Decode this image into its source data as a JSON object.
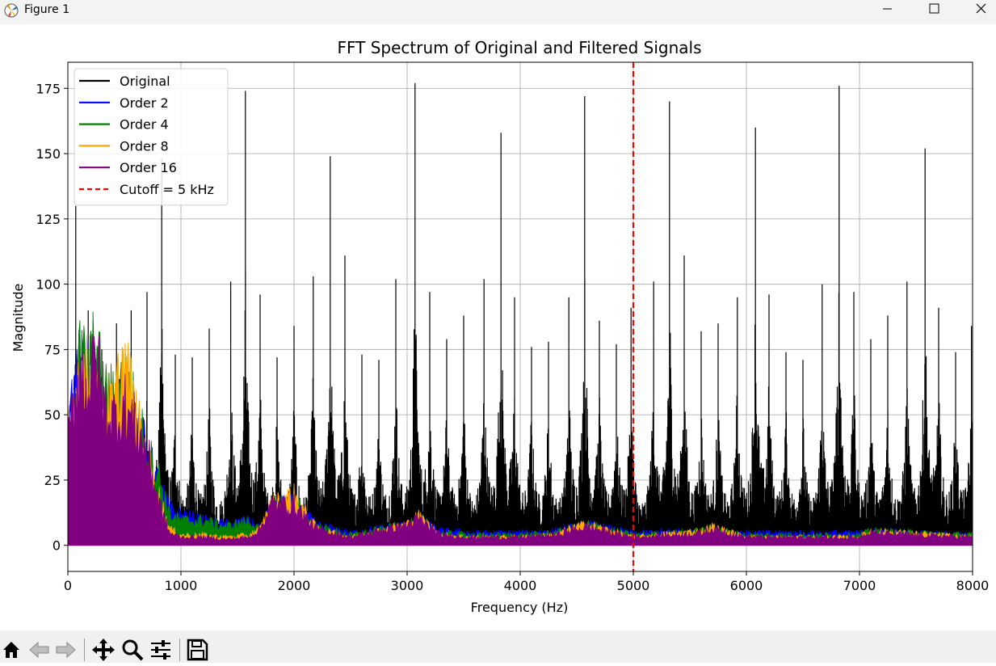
{
  "window": {
    "title": "Figure 1",
    "buttons": [
      "minimize",
      "maximize",
      "close"
    ]
  },
  "toolbar": {
    "icons": [
      "home-icon",
      "back-arrow-icon",
      "forward-arrow-icon",
      "pan-icon",
      "zoom-icon",
      "configure-subplots-icon",
      "save-icon"
    ]
  },
  "chart_data": {
    "type": "line",
    "title": "FFT Spectrum of Original and Filtered Signals",
    "xlabel": "Frequency (Hz)",
    "ylabel": "Magnitude",
    "xlim": [
      0,
      8000
    ],
    "ylim": [
      -10,
      185
    ],
    "xticks": [
      0,
      1000,
      2000,
      3000,
      4000,
      5000,
      6000,
      7000,
      8000
    ],
    "yticks": [
      0,
      25,
      50,
      75,
      100,
      125,
      150,
      175
    ],
    "grid": true,
    "legend_position": "top-left",
    "legend": [
      {
        "label": "Original",
        "color": "#000000",
        "style": "solid"
      },
      {
        "label": "Order 2",
        "color": "#0000ff",
        "style": "solid"
      },
      {
        "label": "Order 4",
        "color": "#008000",
        "style": "solid"
      },
      {
        "label": "Order 8",
        "color": "#ffa500",
        "style": "solid"
      },
      {
        "label": "Order 16",
        "color": "#800080",
        "style": "solid"
      },
      {
        "label": "Cutoff = 5 kHz",
        "color": "#ff0000",
        "style": "dashed"
      }
    ],
    "cutoff_line": {
      "x": 5000,
      "color": "#ff0000"
    },
    "series": [
      {
        "name": "Original",
        "color": "#000000",
        "peaks": [
          {
            "x": 70,
            "y": 130
          },
          {
            "x": 180,
            "y": 90
          },
          {
            "x": 300,
            "y": 75
          },
          {
            "x": 430,
            "y": 85
          },
          {
            "x": 560,
            "y": 90
          },
          {
            "x": 700,
            "y": 97
          },
          {
            "x": 830,
            "y": 148
          },
          {
            "x": 950,
            "y": 73
          },
          {
            "x": 1100,
            "y": 72
          },
          {
            "x": 1250,
            "y": 83
          },
          {
            "x": 1440,
            "y": 101
          },
          {
            "x": 1570,
            "y": 174
          },
          {
            "x": 1700,
            "y": 96
          },
          {
            "x": 1850,
            "y": 72
          },
          {
            "x": 2000,
            "y": 84
          },
          {
            "x": 2170,
            "y": 103
          },
          {
            "x": 2320,
            "y": 149
          },
          {
            "x": 2450,
            "y": 111
          },
          {
            "x": 2600,
            "y": 73
          },
          {
            "x": 2750,
            "y": 71
          },
          {
            "x": 2900,
            "y": 102
          },
          {
            "x": 3070,
            "y": 177
          },
          {
            "x": 3200,
            "y": 97
          },
          {
            "x": 3350,
            "y": 79
          },
          {
            "x": 3500,
            "y": 88
          },
          {
            "x": 3680,
            "y": 102
          },
          {
            "x": 3830,
            "y": 158
          },
          {
            "x": 3950,
            "y": 95
          },
          {
            "x": 4100,
            "y": 76
          },
          {
            "x": 4250,
            "y": 78
          },
          {
            "x": 4430,
            "y": 95
          },
          {
            "x": 4570,
            "y": 172
          },
          {
            "x": 4700,
            "y": 86
          },
          {
            "x": 4850,
            "y": 77
          },
          {
            "x": 4980,
            "y": 91
          },
          {
            "x": 5180,
            "y": 101
          },
          {
            "x": 5320,
            "y": 170
          },
          {
            "x": 5450,
            "y": 111
          },
          {
            "x": 5600,
            "y": 82
          },
          {
            "x": 5750,
            "y": 85
          },
          {
            "x": 5920,
            "y": 95
          },
          {
            "x": 6080,
            "y": 160
          },
          {
            "x": 6200,
            "y": 96
          },
          {
            "x": 6350,
            "y": 74
          },
          {
            "x": 6500,
            "y": 71
          },
          {
            "x": 6670,
            "y": 100
          },
          {
            "x": 6820,
            "y": 176
          },
          {
            "x": 6950,
            "y": 97
          },
          {
            "x": 7100,
            "y": 79
          },
          {
            "x": 7250,
            "y": 88
          },
          {
            "x": 7420,
            "y": 101
          },
          {
            "x": 7580,
            "y": 152
          },
          {
            "x": 7700,
            "y": 91
          },
          {
            "x": 7850,
            "y": 74
          },
          {
            "x": 7990,
            "y": 84
          }
        ]
      },
      {
        "name": "Order 2",
        "color": "#0000ff",
        "envelope": [
          [
            0,
            55
          ],
          [
            100,
            85
          ],
          [
            200,
            80
          ],
          [
            300,
            70
          ],
          [
            400,
            65
          ],
          [
            500,
            75
          ],
          [
            600,
            60
          ],
          [
            700,
            45
          ],
          [
            800,
            30
          ],
          [
            900,
            18
          ],
          [
            1000,
            15
          ],
          [
            1200,
            12
          ],
          [
            1400,
            10
          ],
          [
            1600,
            12
          ],
          [
            1700,
            8
          ],
          [
            1800,
            18
          ],
          [
            2000,
            20
          ],
          [
            2200,
            10
          ],
          [
            2500,
            6
          ],
          [
            3000,
            10
          ],
          [
            3100,
            12
          ],
          [
            3300,
            7
          ],
          [
            3600,
            6
          ],
          [
            4000,
            6
          ],
          [
            4300,
            7
          ],
          [
            4500,
            9
          ],
          [
            4600,
            10
          ],
          [
            5000,
            6
          ],
          [
            5600,
            7
          ],
          [
            5700,
            8
          ],
          [
            6000,
            6
          ],
          [
            6500,
            6
          ],
          [
            7000,
            6
          ],
          [
            7100,
            7
          ],
          [
            8000,
            5
          ]
        ]
      },
      {
        "name": "Order 4",
        "color": "#008000",
        "envelope": [
          [
            0,
            55
          ],
          [
            100,
            90
          ],
          [
            200,
            85
          ],
          [
            250,
            100
          ],
          [
            300,
            75
          ],
          [
            400,
            70
          ],
          [
            500,
            80
          ],
          [
            600,
            65
          ],
          [
            700,
            45
          ],
          [
            800,
            35
          ],
          [
            900,
            15
          ],
          [
            1000,
            12
          ],
          [
            1200,
            12
          ],
          [
            1400,
            9
          ],
          [
            1600,
            12
          ],
          [
            1700,
            7
          ],
          [
            1800,
            19
          ],
          [
            2000,
            21
          ],
          [
            2200,
            9
          ],
          [
            2500,
            5
          ],
          [
            3000,
            10
          ],
          [
            3100,
            13
          ],
          [
            3300,
            6
          ],
          [
            3600,
            5
          ],
          [
            4000,
            5
          ],
          [
            4300,
            6
          ],
          [
            4500,
            9
          ],
          [
            4600,
            10
          ],
          [
            5000,
            5
          ],
          [
            5600,
            7
          ],
          [
            5700,
            8
          ],
          [
            6000,
            5
          ],
          [
            6500,
            5
          ],
          [
            7000,
            5
          ],
          [
            7100,
            7
          ],
          [
            8000,
            5
          ]
        ]
      },
      {
        "name": "Order 8",
        "color": "#ffa500",
        "envelope": [
          [
            0,
            55
          ],
          [
            100,
            85
          ],
          [
            200,
            80
          ],
          [
            300,
            70
          ],
          [
            400,
            65
          ],
          [
            500,
            92
          ],
          [
            600,
            62
          ],
          [
            700,
            42
          ],
          [
            800,
            25
          ],
          [
            900,
            8
          ],
          [
            1000,
            5
          ],
          [
            1200,
            5
          ],
          [
            1400,
            4
          ],
          [
            1600,
            5
          ],
          [
            1700,
            8
          ],
          [
            1800,
            20
          ],
          [
            2000,
            24
          ],
          [
            2200,
            8
          ],
          [
            2500,
            4
          ],
          [
            3000,
            10
          ],
          [
            3100,
            14
          ],
          [
            3300,
            5
          ],
          [
            3600,
            4
          ],
          [
            4000,
            4
          ],
          [
            4300,
            5
          ],
          [
            4500,
            9
          ],
          [
            4600,
            10
          ],
          [
            5000,
            4
          ],
          [
            5600,
            7
          ],
          [
            5700,
            9
          ],
          [
            6000,
            4
          ],
          [
            6500,
            4
          ],
          [
            7000,
            4
          ],
          [
            7100,
            7
          ],
          [
            8000,
            4
          ]
        ]
      },
      {
        "name": "Order 16",
        "color": "#800080",
        "envelope": [
          [
            0,
            50
          ],
          [
            100,
            85
          ],
          [
            200,
            78
          ],
          [
            250,
            95
          ],
          [
            300,
            70
          ],
          [
            400,
            62
          ],
          [
            500,
            68
          ],
          [
            600,
            58
          ],
          [
            700,
            45
          ],
          [
            800,
            22
          ],
          [
            900,
            6
          ],
          [
            1000,
            4
          ],
          [
            1200,
            4
          ],
          [
            1400,
            3
          ],
          [
            1600,
            4
          ],
          [
            1700,
            8
          ],
          [
            1800,
            20
          ],
          [
            2000,
            20
          ],
          [
            2200,
            8
          ],
          [
            2500,
            4
          ],
          [
            3000,
            10
          ],
          [
            3100,
            13
          ],
          [
            3300,
            5
          ],
          [
            3600,
            4
          ],
          [
            4000,
            4
          ],
          [
            4300,
            5
          ],
          [
            4500,
            8
          ],
          [
            4600,
            9
          ],
          [
            5000,
            4
          ],
          [
            5600,
            6
          ],
          [
            5700,
            8
          ],
          [
            6000,
            4
          ],
          [
            6500,
            4
          ],
          [
            7000,
            4
          ],
          [
            7100,
            6
          ],
          [
            8000,
            4
          ]
        ]
      }
    ]
  }
}
